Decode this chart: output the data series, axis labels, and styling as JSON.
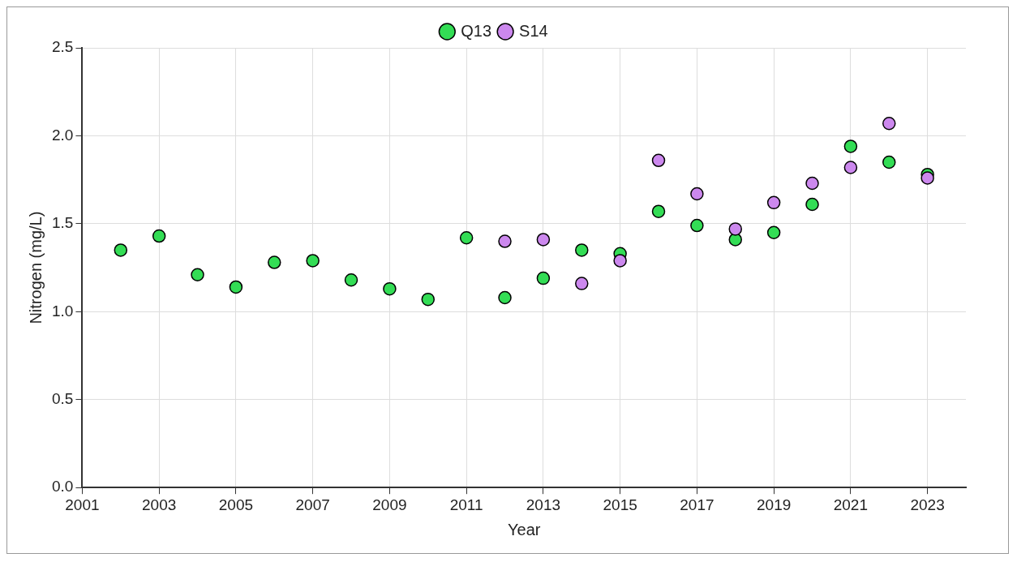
{
  "chart_data": {
    "type": "scatter",
    "xlabel": "Year",
    "ylabel": "Nitrogen (mg/L)",
    "xlim": [
      2001,
      2024
    ],
    "xticks": [
      2001,
      2003,
      2005,
      2007,
      2009,
      2011,
      2013,
      2015,
      2017,
      2019,
      2021,
      2023
    ],
    "ylim": [
      0,
      2.5
    ],
    "yticks": [
      {
        "value": 0,
        "label": "0.0"
      },
      0.5,
      {
        "value": 1,
        "label": "1.0"
      },
      1.5,
      {
        "value": 2,
        "label": "2.0"
      },
      2.5
    ],
    "grid": true,
    "legend": "top",
    "marker": "circle",
    "series": [
      {
        "name": "Q13",
        "color": "#33dd55",
        "x": [
          2002,
          2003,
          2004,
          2005,
          2006,
          2007,
          2008,
          2009,
          2010,
          2011,
          2012,
          2013,
          2014,
          2015,
          2016,
          2017,
          2018,
          2019,
          2020,
          2021,
          2022,
          2023
        ],
        "values": [
          1.35,
          1.43,
          1.21,
          1.14,
          1.28,
          1.29,
          1.18,
          1.13,
          1.07,
          1.42,
          1.08,
          1.19,
          1.35,
          1.33,
          1.57,
          1.49,
          1.41,
          1.45,
          1.61,
          1.94,
          1.85,
          1.78
        ]
      },
      {
        "name": "S14",
        "color": "#cc88ee",
        "x": [
          2012,
          2013,
          2014,
          2015,
          2016,
          2017,
          2018,
          2019,
          2020,
          2021,
          2022,
          2023
        ],
        "values": [
          1.4,
          1.41,
          1.16,
          1.29,
          1.86,
          1.67,
          1.47,
          1.62,
          1.73,
          1.82,
          2.07,
          1.76
        ]
      }
    ]
  }
}
